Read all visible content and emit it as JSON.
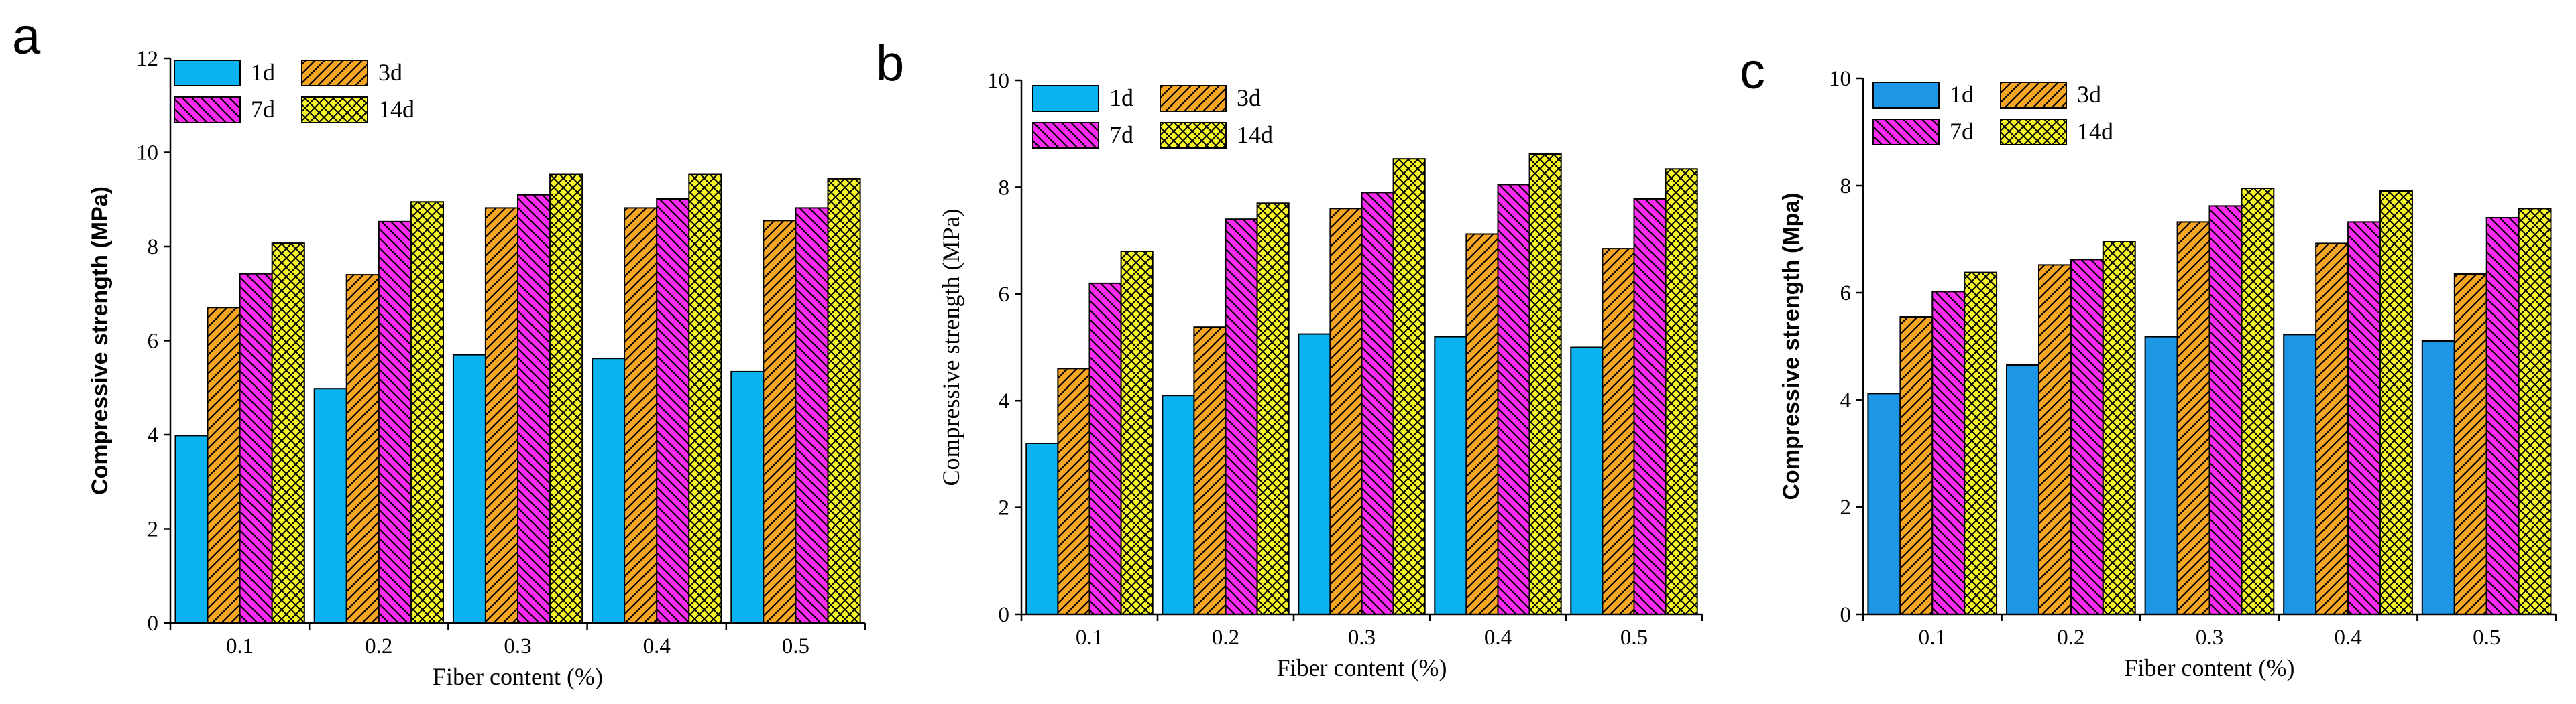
{
  "chart_data": [
    {
      "panel": "a",
      "type": "bar",
      "xlabel": "Fiber content (%)",
      "ylabel": "Compressive strength (MPa)",
      "categories": [
        "0.1",
        "0.2",
        "0.3",
        "0.4",
        "0.5"
      ],
      "ylim": [
        0,
        12
      ],
      "yticks": [
        "0",
        "2",
        "4",
        "6",
        "8",
        "10",
        "12"
      ],
      "legend": "top-left",
      "series": [
        {
          "name": "1d",
          "color": "#0ab2f0",
          "values": [
            3.98,
            4.98,
            5.7,
            5.62,
            5.34
          ]
        },
        {
          "name": "3d",
          "color": "#f7a623",
          "values": [
            6.7,
            7.4,
            8.82,
            8.82,
            8.55
          ]
        },
        {
          "name": "7d",
          "color": "#ff2bf5",
          "values": [
            7.42,
            8.53,
            9.1,
            9.01,
            8.82
          ]
        },
        {
          "name": "14d",
          "color": "#f5f527",
          "values": [
            8.07,
            8.95,
            9.53,
            9.53,
            9.44
          ]
        }
      ]
    },
    {
      "panel": "b",
      "type": "bar",
      "xlabel": "Fiber content (%)",
      "ylabel": "Compressive strength (MPa)",
      "categories": [
        "0.1",
        "0.2",
        "0.3",
        "0.4",
        "0.5"
      ],
      "ylim": [
        0,
        10
      ],
      "yticks": [
        "0",
        "2",
        "4",
        "6",
        "8",
        "10"
      ],
      "legend": "top-left",
      "series": [
        {
          "name": "1d",
          "color": "#0ab2f0",
          "values": [
            3.2,
            4.1,
            5.25,
            5.2,
            5.0
          ]
        },
        {
          "name": "3d",
          "color": "#f7a623",
          "values": [
            4.6,
            5.38,
            7.6,
            7.12,
            6.85
          ]
        },
        {
          "name": "7d",
          "color": "#ff2bf5",
          "values": [
            6.2,
            7.4,
            7.9,
            8.05,
            7.78
          ]
        },
        {
          "name": "14d",
          "color": "#f5f527",
          "values": [
            6.8,
            7.7,
            8.53,
            8.62,
            8.34
          ]
        }
      ]
    },
    {
      "panel": "c",
      "type": "bar",
      "xlabel": "Fiber content (%)",
      "ylabel": "Compressive strength (Mpa)",
      "categories": [
        "0.1",
        "0.2",
        "0.3",
        "0.4",
        "0.5"
      ],
      "ylim": [
        0,
        10
      ],
      "yticks": [
        "0",
        "2",
        "4",
        "6",
        "8",
        "10"
      ],
      "legend": "top-left",
      "series": [
        {
          "name": "1d",
          "color": "#1e96e6",
          "values": [
            4.12,
            4.65,
            5.18,
            5.22,
            5.1
          ]
        },
        {
          "name": "3d",
          "color": "#f7a623",
          "values": [
            5.55,
            6.52,
            7.32,
            6.92,
            6.35
          ]
        },
        {
          "name": "7d",
          "color": "#ff2bf5",
          "values": [
            6.02,
            6.62,
            7.62,
            7.32,
            7.4
          ]
        },
        {
          "name": "14d",
          "color": "#f5f527",
          "values": [
            6.38,
            6.95,
            7.95,
            7.9,
            7.57
          ]
        }
      ]
    }
  ]
}
